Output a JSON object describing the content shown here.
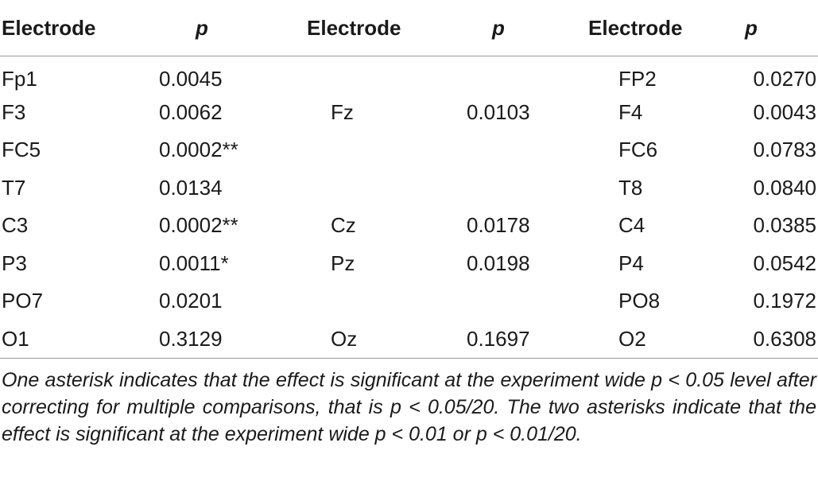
{
  "table": {
    "headers": [
      "Electrode",
      "p",
      "Electrode",
      "p",
      "Electrode",
      "p"
    ],
    "rows": [
      [
        "Fp1",
        "0.0045",
        "",
        "",
        "FP2",
        "0.0270"
      ],
      [
        "F3",
        "0.0062",
        "Fz",
        "0.0103",
        "F4",
        "0.0043"
      ],
      [
        "FC5",
        "0.0002**",
        "",
        "",
        "FC6",
        "0.0783"
      ],
      [
        "T7",
        "0.0134",
        "",
        "",
        "T8",
        "0.0840"
      ],
      [
        "C3",
        "0.0002**",
        "Cz",
        "0.0178",
        "C4",
        "0.0385"
      ],
      [
        "P3",
        "0.0011*",
        "Pz",
        "0.0198",
        "P4",
        "0.0542"
      ],
      [
        "PO7",
        "0.0201",
        "",
        "",
        "PO8",
        "0.1972"
      ],
      [
        "O1",
        "0.3129",
        "Oz",
        "0.1697",
        "O2",
        "0.6308"
      ]
    ]
  },
  "footnote": "One asterisk indicates that the effect is significant at the experiment wide p < 0.05 level after correcting for multiple comparisons, that is p < 0.05/20. The two asterisks indicate that the effect is significant at the experiment wide p < 0.01 or p < 0.01/20."
}
